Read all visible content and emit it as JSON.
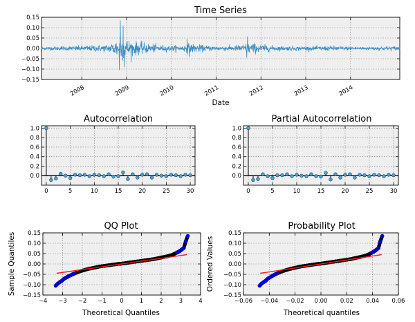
{
  "chart_data": [
    {
      "id": "ts",
      "type": "line",
      "title": "Time Series",
      "xlabel": "Date",
      "ylabel": "",
      "xlim": [
        2007.1,
        2015.1
      ],
      "ylim": [
        -0.15,
        0.15
      ],
      "yticks": [
        -0.15,
        -0.1,
        -0.05,
        0.0,
        0.05,
        0.1,
        0.15
      ],
      "ytick_labels": [
        "−0.15",
        "−0.10",
        "−0.05",
        "0.00",
        "0.05",
        "0.10",
        "0.15"
      ],
      "xticks": [
        2008,
        2009,
        2010,
        2011,
        2012,
        2013,
        2014
      ],
      "xtick_labels": [
        "2008",
        "2009",
        "2010",
        "2011",
        "2012",
        "2013",
        "2014"
      ],
      "color": "#3b8dc4",
      "volatility_envelope": {
        "t": [
          2007.1,
          2007.5,
          2007.9,
          2008.3,
          2008.6,
          2008.75,
          2008.85,
          2009.0,
          2009.2,
          2009.5,
          2009.8,
          2010.2,
          2010.4,
          2010.7,
          2011.0,
          2011.3,
          2011.6,
          2011.75,
          2012.0,
          2012.3,
          2012.7,
          2013.0,
          2013.3,
          2013.6,
          2014.0,
          2014.4,
          2014.7,
          2015.1
        ],
        "amp": [
          0.008,
          0.011,
          0.013,
          0.016,
          0.02,
          0.042,
          0.07,
          0.05,
          0.036,
          0.024,
          0.016,
          0.014,
          0.026,
          0.016,
          0.012,
          0.013,
          0.02,
          0.03,
          0.02,
          0.013,
          0.011,
          0.01,
          0.011,
          0.013,
          0.009,
          0.008,
          0.01,
          0.012
        ]
      },
      "peaks": [
        {
          "x": 2008.86,
          "y": 0.135
        },
        {
          "x": 2008.84,
          "y": -0.105
        },
        {
          "x": 2008.92,
          "y": 0.11
        },
        {
          "x": 2008.95,
          "y": -0.09
        },
        {
          "x": 2010.35,
          "y": 0.045
        },
        {
          "x": 2010.4,
          "y": -0.04
        },
        {
          "x": 2011.7,
          "y": 0.058
        },
        {
          "x": 2011.68,
          "y": -0.045
        }
      ]
    },
    {
      "id": "acf",
      "type": "stem",
      "title": "Autocorrelation",
      "xlim": [
        -1,
        31
      ],
      "ylim": [
        -0.2,
        1.05
      ],
      "yticks": [
        0.0,
        0.2,
        0.4,
        0.6,
        0.8,
        1.0
      ],
      "ytick_labels": [
        "0.0",
        "0.2",
        "0.4",
        "0.6",
        "0.8",
        "1.0"
      ],
      "xticks": [
        0,
        5,
        10,
        15,
        20,
        25,
        30
      ],
      "xtick_labels": [
        "0",
        "5",
        "10",
        "15",
        "20",
        "25",
        "30"
      ],
      "lags": [
        0,
        1,
        2,
        3,
        4,
        5,
        6,
        7,
        8,
        9,
        10,
        11,
        12,
        13,
        14,
        15,
        16,
        17,
        18,
        19,
        20,
        21,
        22,
        23,
        24,
        25,
        26,
        27,
        28,
        29,
        30
      ],
      "values": [
        1.0,
        -0.09,
        -0.06,
        0.04,
        0.0,
        -0.05,
        0.02,
        0.01,
        0.02,
        -0.01,
        0.02,
        0.01,
        -0.01,
        0.03,
        -0.02,
        -0.01,
        0.07,
        -0.07,
        0.03,
        -0.04,
        0.02,
        0.03,
        -0.04,
        0.02,
        0.0,
        -0.01,
        0.02,
        0.01,
        -0.01,
        0.02,
        0.01
      ]
    },
    {
      "id": "pacf",
      "type": "stem",
      "title": "Partial Autocorrelation",
      "xlim": [
        -1,
        31
      ],
      "ylim": [
        -0.2,
        1.05
      ],
      "yticks": [
        0.0,
        0.2,
        0.4,
        0.6,
        0.8,
        1.0
      ],
      "ytick_labels": [
        "0.0",
        "0.2",
        "0.4",
        "0.6",
        "0.8",
        "1.0"
      ],
      "xticks": [
        0,
        5,
        10,
        15,
        20,
        25,
        30
      ],
      "xtick_labels": [
        "0",
        "5",
        "10",
        "15",
        "20",
        "25",
        "30"
      ],
      "lags": [
        0,
        1,
        2,
        3,
        4,
        5,
        6,
        7,
        8,
        9,
        10,
        11,
        12,
        13,
        14,
        15,
        16,
        17,
        18,
        19,
        20,
        21,
        22,
        23,
        24,
        25,
        26,
        27,
        28,
        29,
        30
      ],
      "values": [
        1.0,
        -0.09,
        -0.07,
        0.03,
        -0.01,
        -0.05,
        0.01,
        0.01,
        0.03,
        -0.01,
        0.02,
        0.0,
        -0.01,
        0.03,
        -0.01,
        -0.02,
        0.06,
        -0.08,
        0.03,
        -0.04,
        0.02,
        0.03,
        -0.04,
        0.02,
        0.01,
        -0.01,
        0.02,
        0.01,
        -0.01,
        0.02,
        0.01
      ]
    },
    {
      "id": "qq",
      "type": "scatter",
      "title": "QQ Plot",
      "xlabel": "Theoretical Quantiles",
      "ylabel": "Sample Quantiles",
      "xlim": [
        -4,
        4
      ],
      "ylim": [
        -0.15,
        0.15
      ],
      "xticks": [
        -4,
        -3,
        -2,
        -1,
        0,
        1,
        2,
        3,
        4
      ],
      "xtick_labels": [
        "−4",
        "−3",
        "−2",
        "−1",
        "0",
        "1",
        "2",
        "3",
        "4"
      ],
      "yticks": [
        -0.15,
        -0.1,
        -0.05,
        0.0,
        0.05,
        0.1,
        0.15
      ],
      "ytick_labels": [
        "−0.15",
        "−0.10",
        "−0.05",
        "0.00",
        "0.05",
        "0.10",
        "0.15"
      ],
      "line": {
        "x": [
          -3.3,
          3.3
        ],
        "y": [
          -0.045,
          0.045
        ],
        "color": "#ff1a1a"
      },
      "points": {
        "x": [
          -3.35,
          -3.25,
          -3.15,
          -3.05,
          -2.98,
          -2.9,
          -2.82,
          -2.75,
          -2.68,
          -2.6,
          -2.5,
          -2.4,
          -2.3,
          -2.2,
          -2.1,
          -2.0,
          -1.85,
          -1.7,
          -1.55,
          -1.4,
          -1.25,
          -1.1,
          -0.95,
          -0.8,
          -0.65,
          -0.5,
          -0.35,
          -0.2,
          -0.05,
          0.1,
          0.25,
          0.4,
          0.55,
          0.7,
          0.85,
          1.0,
          1.15,
          1.3,
          1.45,
          1.6,
          1.75,
          1.9,
          2.05,
          2.2,
          2.35,
          2.5,
          2.6,
          2.7,
          2.8,
          2.9,
          2.98,
          3.05,
          3.15,
          3.25,
          3.35
        ],
        "y": [
          -0.105,
          -0.095,
          -0.088,
          -0.082,
          -0.076,
          -0.07,
          -0.066,
          -0.062,
          -0.058,
          -0.055,
          -0.05,
          -0.046,
          -0.042,
          -0.038,
          -0.035,
          -0.032,
          -0.028,
          -0.024,
          -0.021,
          -0.018,
          -0.015,
          -0.012,
          -0.01,
          -0.008,
          -0.006,
          -0.004,
          -0.002,
          0.0,
          0.001,
          0.003,
          0.005,
          0.007,
          0.009,
          0.011,
          0.013,
          0.015,
          0.017,
          0.019,
          0.021,
          0.023,
          0.026,
          0.029,
          0.032,
          0.035,
          0.038,
          0.042,
          0.046,
          0.05,
          0.055,
          0.06,
          0.065,
          0.07,
          0.077,
          0.11,
          0.135
        ],
        "color": "#0000cc"
      }
    },
    {
      "id": "prob",
      "type": "scatter",
      "title": "Probability Plot",
      "xlabel": "Theoretical quantiles",
      "ylabel": "Ordered Values",
      "xlim": [
        -0.06,
        0.06
      ],
      "ylim": [
        -0.15,
        0.15
      ],
      "xticks": [
        -0.06,
        -0.04,
        -0.02,
        0.0,
        0.02,
        0.04,
        0.06
      ],
      "xtick_labels": [
        "−0.06",
        "−0.04",
        "−0.02",
        "0.00",
        "0.02",
        "0.04",
        "0.06"
      ],
      "yticks": [
        -0.15,
        -0.1,
        -0.05,
        0.0,
        0.05,
        0.1,
        0.15
      ],
      "ytick_labels": [
        "−0.15",
        "−0.10",
        "−0.05",
        "0.00",
        "0.05",
        "0.10",
        "0.15"
      ],
      "line": {
        "x": [
          -0.047,
          0.047
        ],
        "y": [
          -0.045,
          0.045
        ],
        "color": "#ff1a1a"
      },
      "points": {
        "x": [
          -0.0475,
          -0.046,
          -0.0445,
          -0.043,
          -0.042,
          -0.041,
          -0.0398,
          -0.0388,
          -0.0378,
          -0.0368,
          -0.0354,
          -0.034,
          -0.0326,
          -0.0312,
          -0.0298,
          -0.0284,
          -0.0262,
          -0.024,
          -0.022,
          -0.0198,
          -0.0177,
          -0.0156,
          -0.0134,
          -0.0113,
          -0.0092,
          -0.0071,
          -0.005,
          -0.0028,
          -0.0007,
          0.0014,
          0.0035,
          0.0057,
          0.0078,
          0.0099,
          0.012,
          0.0142,
          0.0163,
          0.0184,
          0.0205,
          0.0227,
          0.0248,
          0.0269,
          0.029,
          0.0312,
          0.0333,
          0.0354,
          0.0368,
          0.0382,
          0.0396,
          0.041,
          0.0422,
          0.0432,
          0.0446,
          0.046,
          0.0475
        ],
        "y": [
          -0.105,
          -0.095,
          -0.088,
          -0.082,
          -0.076,
          -0.07,
          -0.066,
          -0.062,
          -0.058,
          -0.055,
          -0.05,
          -0.046,
          -0.042,
          -0.038,
          -0.035,
          -0.032,
          -0.028,
          -0.024,
          -0.021,
          -0.018,
          -0.015,
          -0.012,
          -0.01,
          -0.008,
          -0.006,
          -0.004,
          -0.002,
          0.0,
          0.001,
          0.003,
          0.005,
          0.007,
          0.009,
          0.011,
          0.013,
          0.015,
          0.017,
          0.019,
          0.021,
          0.023,
          0.026,
          0.029,
          0.032,
          0.035,
          0.038,
          0.042,
          0.046,
          0.05,
          0.055,
          0.06,
          0.065,
          0.07,
          0.077,
          0.11,
          0.135
        ],
        "color": "#0000cc"
      }
    }
  ]
}
